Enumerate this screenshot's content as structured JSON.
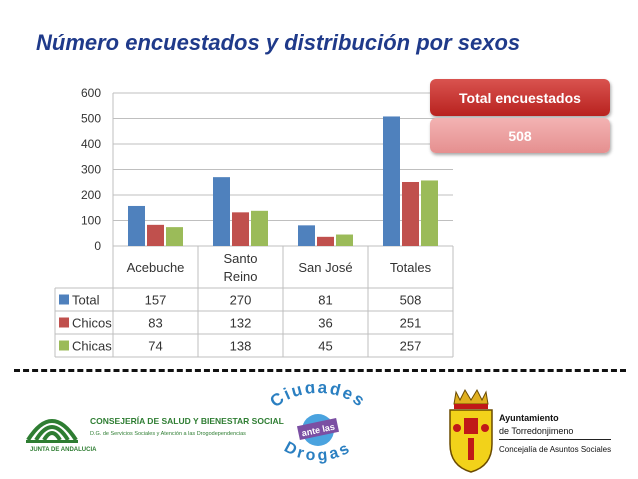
{
  "title": "Número encuestados y distribución por sexos",
  "callout": {
    "label": "Total encuestados",
    "value": "508"
  },
  "colors": {
    "title": "#1f3a8a",
    "total": "#4f81bd",
    "chicos": "#c0504d",
    "chicas": "#9bbb59"
  },
  "chart_data": {
    "type": "bar",
    "title": "",
    "categories": [
      "Acebuche",
      "Santo Reino",
      "San José",
      "Totales"
    ],
    "category_lines": [
      [
        "Acebuche"
      ],
      [
        "Santo",
        "Reino"
      ],
      [
        "San José"
      ],
      [
        "Totales"
      ]
    ],
    "series": [
      {
        "name": "Total",
        "values": [
          157,
          270,
          81,
          508
        ]
      },
      {
        "name": "Chicos",
        "values": [
          83,
          132,
          36,
          251
        ]
      },
      {
        "name": "Chicas",
        "values": [
          74,
          138,
          45,
          257
        ]
      }
    ],
    "ylim": [
      0,
      600
    ],
    "yticks": [
      600,
      500,
      400,
      300,
      200,
      100,
      0
    ],
    "ytick_labels": [
      "600",
      "500",
      "400",
      "300",
      "200",
      "100",
      "0"
    ],
    "grid": true,
    "data_table": true
  },
  "footer": {
    "junta": "JUNTA DE ANDALUCIA",
    "consejeria": "CONSEJERÍA DE SALUD Y BIENESTAR SOCIAL",
    "consejeria_sub": "D.G. de Servicios Sociales y Atención a las Drogodependencias",
    "ciudades_top": "Ciudades",
    "ciudades_mid": "ante las",
    "ciudades_bottom": "Drogas",
    "ayto_line1": "Ayuntamiento",
    "ayto_line2": "de Torredonjimeno",
    "ayto_line3": "Concejalía de Asuntos Sociales"
  }
}
